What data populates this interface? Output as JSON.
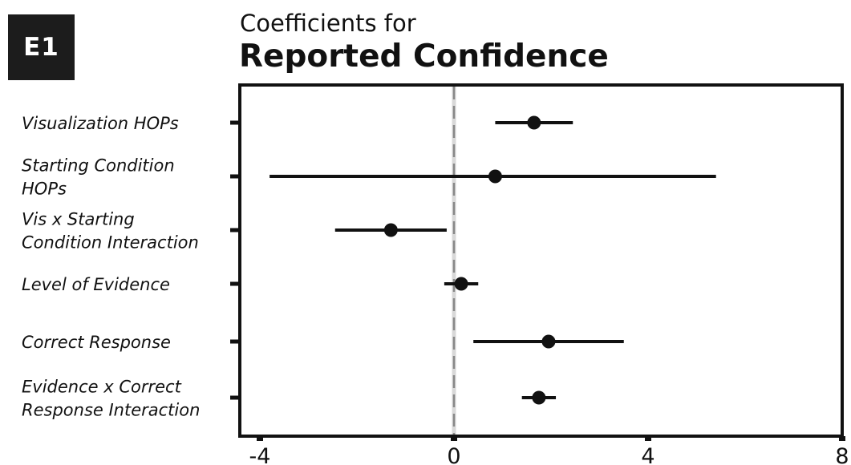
{
  "panel_label": "E1",
  "chart_data": {
    "type": "scatter",
    "subtype": "coefficient-plot",
    "title": "Coefficients for",
    "subtitle": "Reported Confidence",
    "xlim": [
      -5.5,
      8.3
    ],
    "x_ticks": [
      -4,
      0,
      4,
      8
    ],
    "reference_line": 0,
    "grid": false,
    "categories": [
      {
        "label_lines": [
          "Visualization HOPs"
        ],
        "estimate": 1.65,
        "lower": 0.85,
        "upper": 2.45
      },
      {
        "label_lines": [
          "Starting Condition",
          "HOPs"
        ],
        "estimate": 0.85,
        "lower": -3.8,
        "upper": 5.4
      },
      {
        "label_lines": [
          "Vis x Starting",
          "Condition Interaction"
        ],
        "estimate": -1.3,
        "lower": -2.45,
        "upper": -0.15
      },
      {
        "label_lines": [
          "Level of Evidence"
        ],
        "estimate": 0.15,
        "lower": -0.2,
        "upper": 0.5
      },
      {
        "label_lines": [
          "Correct Response"
        ],
        "estimate": 1.95,
        "lower": 0.4,
        "upper": 3.5
      },
      {
        "label_lines": [
          "Evidence x Correct",
          "Response Interaction"
        ],
        "estimate": 1.75,
        "lower": 1.4,
        "upper": 2.1
      }
    ]
  },
  "colors": {
    "ink": "#111111",
    "badge": "#1c1c1c",
    "reference_line": "#888888",
    "reference_band": "#d8d8d8"
  }
}
